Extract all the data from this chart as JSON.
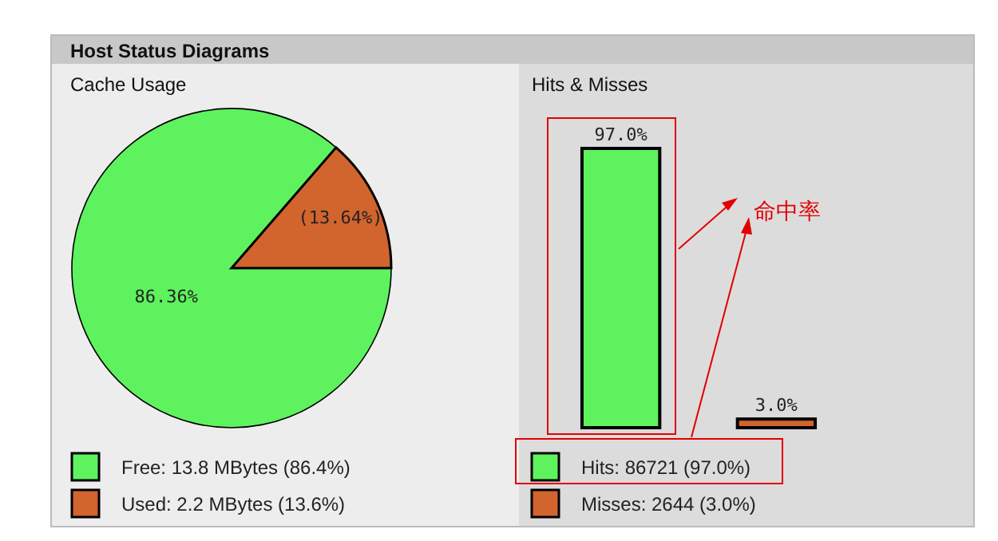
{
  "chart_data": [
    {
      "type": "pie",
      "title": "Host Status Diagrams",
      "subtitle": "Cache Usage",
      "categories": [
        "Free: 13.8 MBytes (86.4%)",
        "Used: 2.2 MBytes (13.6%)"
      ],
      "values": [
        86.36,
        13.64
      ],
      "colors": [
        "#5ef25e",
        "#d2642e"
      ],
      "value_labels": [
        "86.36%",
        "(13.64%)"
      ],
      "legend": "bottom"
    },
    {
      "type": "bar",
      "title": "Hits & Misses",
      "categories": [
        null,
        null
      ],
      "stacked": true,
      "series": [
        {
          "name": "Hits: 86721 (97.0%)",
          "color": "#5ef25e",
          "values": [
            97.0,
            null
          ],
          "value_labels": [
            "97.0%",
            null
          ]
        },
        {
          "name": "Misses: 2644 (3.0%)",
          "color": "#d2642e",
          "values": [
            null,
            3.0
          ],
          "value_labels": [
            null,
            "3.0%"
          ]
        }
      ],
      "legend": "bottom",
      "annotations": [
        "命中率"
      ]
    }
  ]
}
